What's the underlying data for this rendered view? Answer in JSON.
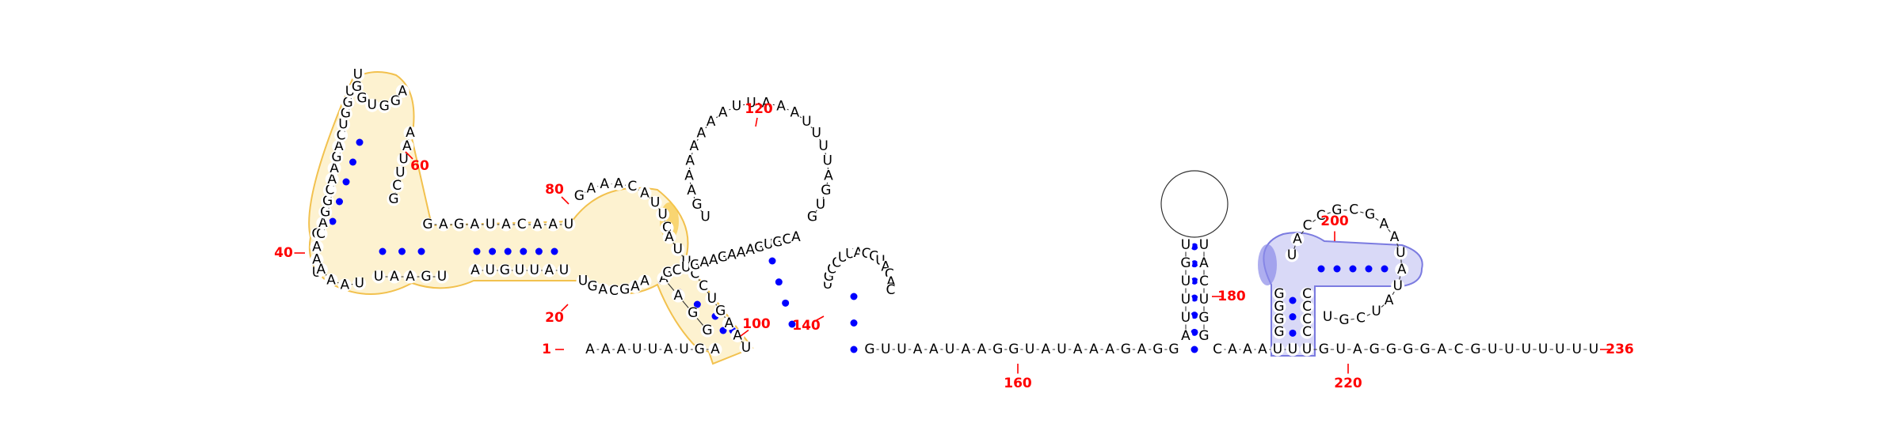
{
  "diagram": {
    "type": "rna-secondary-structure",
    "colors": {
      "nucleotide_text": "#000000",
      "base_pair_dot": "#0000ff",
      "position_label": "#ff0000",
      "highlight_yellow_fill": "#fdf2d0",
      "highlight_yellow_stroke": "#f2c14e",
      "highlight_yellow_dark": "#f7c948",
      "highlight_blue_fill": "#d9d9f7",
      "highlight_blue_stroke": "#7b7be0",
      "highlight_blue_dark": "#8c8ce8"
    },
    "position_labels": [
      "1",
      "20",
      "40",
      "60",
      "80",
      "100",
      "120",
      "140",
      "160",
      "180",
      "200",
      "220",
      "236"
    ],
    "strands": {
      "s1_5prime": [
        "A",
        "A",
        "A",
        "U",
        "U",
        "A",
        "U",
        "G",
        "A"
      ],
      "s1_stemA_up": [
        "U",
        "A",
        "A",
        "G"
      ],
      "s1_loopA_left": [
        "A",
        "A",
        "A",
        "U"
      ],
      "s1_interior1_bottom": [
        "U",
        "A",
        "A",
        "G",
        "U"
      ],
      "s1_interior2_bottom": [
        "A",
        "U",
        "G",
        "U",
        "U",
        "A",
        "U"
      ],
      "s1_multiloop_bottom": [
        "U",
        "G",
        "A",
        "C",
        "G",
        "A",
        "A"
      ],
      "s1_left_inner_stem": [
        "A",
        "A",
        "G",
        "G"
      ],
      "s2_loop_hairpin_left": [
        "C",
        "A",
        "G",
        "G",
        "C",
        "A",
        "A",
        "G",
        "A",
        "C",
        "U",
        "G",
        "G",
        "U"
      ],
      "s2_hairpin_loop": [
        "U",
        "G",
        "G",
        "U",
        "G",
        "G",
        "A"
      ],
      "s2_hairpin_right": [
        "A",
        "A",
        "U",
        "U",
        "C",
        "G"
      ],
      "s2_top_row": [
        "G",
        "A",
        "G",
        "A",
        "U",
        "A",
        "C",
        "A",
        "A",
        "U"
      ],
      "s2_multi_top": [
        "G",
        "A",
        "A",
        "A",
        "C",
        "A",
        "U",
        "U",
        "C"
      ],
      "s3_stem_down": [
        "A",
        "U",
        "U",
        "C",
        "C",
        "U",
        "G",
        "A",
        "A",
        "U"
      ],
      "s3_big_loop": [
        "U",
        "G",
        "A",
        "A",
        "A",
        "A",
        "A",
        "A",
        "A",
        "U",
        "U",
        "A",
        "A",
        "A",
        "U",
        "U",
        "U",
        "U",
        "A",
        "G",
        "U",
        "G"
      ],
      "s3_inner_row": [
        "G",
        "C",
        "U",
        "G",
        "A",
        "A",
        "G",
        "A",
        "A",
        "A",
        "G",
        "U",
        "G",
        "C",
        "A"
      ],
      "s4_small_hairpin": [
        "U",
        "G",
        "C",
        "C",
        "U",
        "U",
        "A",
        "C",
        "C",
        "U",
        "A",
        "C",
        "A",
        "C"
      ],
      "s5_linker": [
        "G",
        "U",
        "U",
        "A",
        "A",
        "U",
        "A",
        "A",
        "G",
        "G",
        "U",
        "A",
        "U",
        "A",
        "A",
        "A",
        "G",
        "A",
        "G",
        "G"
      ],
      "s6_stem_left": [
        "A",
        "U",
        "U",
        "U",
        "G",
        "U"
      ],
      "s6_stem_right": [
        "U",
        "A",
        "C",
        "U",
        "G",
        "G"
      ],
      "s7_linker": [
        "C",
        "A",
        "A",
        "A",
        "U",
        "U"
      ],
      "s8_blue_stem_left": [
        "G",
        "G",
        "G",
        "G"
      ],
      "s8_blue_hairpin": [
        "U",
        "A",
        "C",
        "C",
        "G",
        "C",
        "G",
        "A",
        "A",
        "U",
        "A",
        "U",
        "A",
        "U",
        "C",
        "G",
        "U"
      ],
      "s8_blue_stem_right": [
        "C",
        "C",
        "C",
        "C"
      ],
      "s9_3prime": [
        "U",
        "G",
        "U",
        "A",
        "G",
        "G",
        "G",
        "G",
        "A",
        "C",
        "G",
        "U",
        "U",
        "U",
        "U",
        "U",
        "U",
        "U"
      ]
    }
  }
}
